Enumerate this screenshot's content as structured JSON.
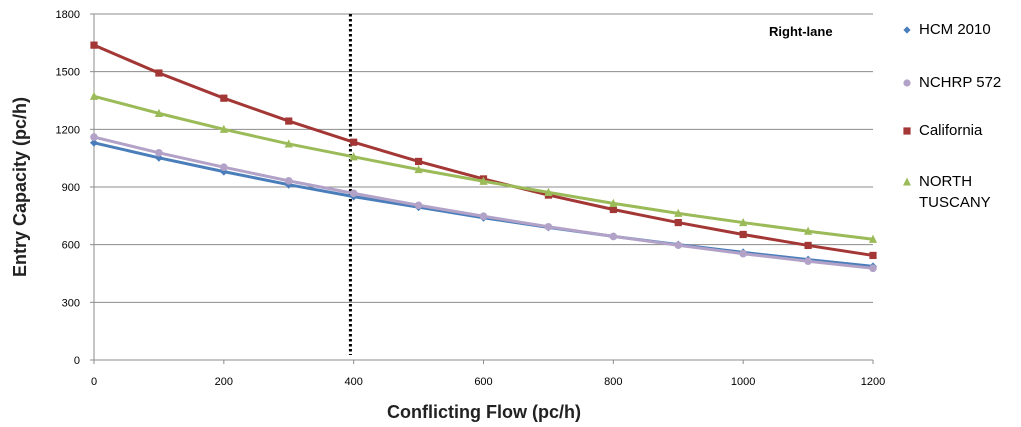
{
  "chart_data": {
    "type": "line",
    "title": "",
    "annotation": "Right-lane",
    "xlabel": "Conflicting Flow (pc/h)",
    "ylabel": "Entry Capacity (pc/h)",
    "xlim": [
      0,
      1200
    ],
    "ylim": [
      0,
      1800
    ],
    "x_ticks": [
      0,
      200,
      400,
      600,
      800,
      1000,
      1200
    ],
    "y_ticks": [
      0,
      300,
      600,
      900,
      1200,
      1500,
      1800
    ],
    "grid": "horizontal",
    "legend_position": "right",
    "reference_line": {
      "x": 395,
      "style": "dotted"
    },
    "x": [
      0,
      100,
      200,
      300,
      400,
      500,
      600,
      700,
      800,
      900,
      1000,
      1100,
      1200
    ],
    "series": [
      {
        "name": "HCM 2010",
        "marker": "diamond",
        "color": "#4A7EBB",
        "values": [
          1130,
          1052,
          980,
          912,
          850,
          795,
          740,
          690,
          643,
          600,
          560,
          522,
          487
        ]
      },
      {
        "name": "NCHRP 572",
        "marker": "circle",
        "color": "#B3A2C7",
        "values": [
          1160,
          1078,
          1003,
          932,
          867,
          805,
          748,
          693,
          643,
          597,
          553,
          514,
          477
        ]
      },
      {
        "name": "California",
        "marker": "square",
        "color": "#A33735",
        "values": [
          1638,
          1493,
          1362,
          1243,
          1133,
          1033,
          942,
          858,
          783,
          715,
          653,
          596,
          544
        ]
      },
      {
        "name": "NORTH TUSCANY",
        "legend_lines": [
          "NORTH",
          "TUSCANY"
        ],
        "marker": "triangle",
        "color": "#9BBB59",
        "values": [
          1372,
          1283,
          1200,
          1124,
          1057,
          991,
          930,
          872,
          815,
          763,
          715,
          670,
          628
        ]
      }
    ]
  }
}
